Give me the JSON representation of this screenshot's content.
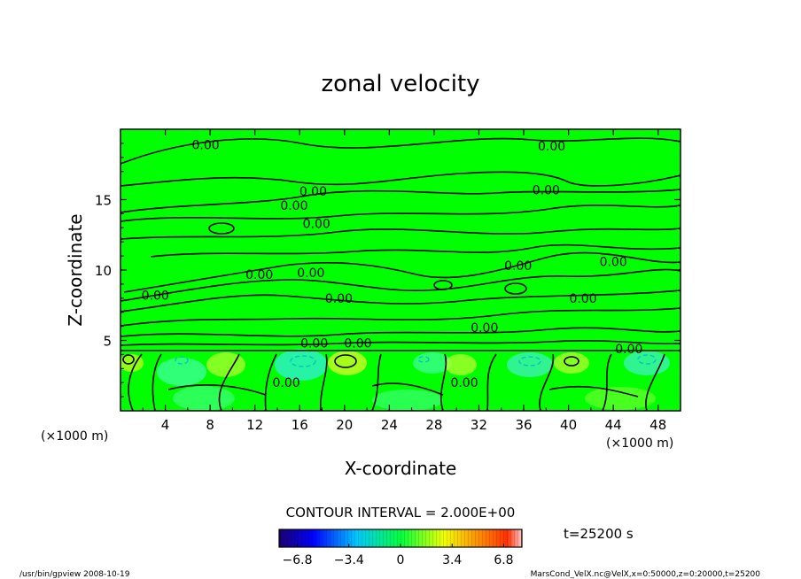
{
  "chart_data": {
    "type": "contour",
    "title": "zonal velocity",
    "xlabel": "X-coordinate",
    "ylabel": "Z-coordinate",
    "x_unit": "(×1000 m)",
    "y_unit": "(×1000 m)",
    "xlim": [
      0,
      50
    ],
    "ylim": [
      0,
      20
    ],
    "x_ticks": [
      4,
      8,
      12,
      16,
      20,
      24,
      28,
      32,
      36,
      40,
      44,
      48
    ],
    "x_tick_labels": [
      "4",
      "8",
      "12",
      "16",
      "20",
      "24",
      "28",
      "32",
      "36",
      "40",
      "44",
      "48"
    ],
    "y_ticks": [
      5,
      10,
      15
    ],
    "y_tick_labels": [
      "5",
      "10",
      "15"
    ],
    "contour_interval_text": "CONTOUR INTERVAL = 2.000E+00",
    "contour_level_label": "0.00",
    "contour_labels": [
      {
        "x": 7.6,
        "y": 18.9,
        "text": "0.00"
      },
      {
        "x": 38.5,
        "y": 18.8,
        "text": "0.00"
      },
      {
        "x": 17.2,
        "y": 15.6,
        "text": "0.00"
      },
      {
        "x": 38.0,
        "y": 15.7,
        "text": "0.00"
      },
      {
        "x": 15.5,
        "y": 14.6,
        "text": "0.00"
      },
      {
        "x": 17.5,
        "y": 13.3,
        "text": "0.00"
      },
      {
        "x": 12.4,
        "y": 9.7,
        "text": "0.00"
      },
      {
        "x": 17.0,
        "y": 9.8,
        "text": "0.00"
      },
      {
        "x": 35.5,
        "y": 10.3,
        "text": "0.00"
      },
      {
        "x": 44.0,
        "y": 10.6,
        "text": "0.00"
      },
      {
        "x": 3.1,
        "y": 8.2,
        "text": "0.00"
      },
      {
        "x": 19.5,
        "y": 8.0,
        "text": "0.00"
      },
      {
        "x": 41.3,
        "y": 8.0,
        "text": "0.00"
      },
      {
        "x": 32.5,
        "y": 5.9,
        "text": "0.00"
      },
      {
        "x": 17.3,
        "y": 4.8,
        "text": "0.00"
      },
      {
        "x": 21.2,
        "y": 4.8,
        "text": "0.00"
      },
      {
        "x": 45.4,
        "y": 4.4,
        "text": "0.00"
      },
      {
        "x": 14.8,
        "y": 2.0,
        "text": "0.00"
      },
      {
        "x": 30.7,
        "y": 2.0,
        "text": "0.00"
      }
    ],
    "colorbar": {
      "ticks": [
        -6.8,
        -3.4,
        0,
        3.4,
        6.8
      ],
      "tick_labels": [
        "−6.8",
        "−3.4",
        "0",
        "3.4",
        "6.8"
      ],
      "colors": [
        "#1a0070",
        "#0000ff",
        "#00c0ff",
        "#00ff40",
        "#f0ff00",
        "#ff8000",
        "#ff3000",
        "#ffc0c0"
      ]
    },
    "time_label": "t=25200 s",
    "background_color": "#00ff00"
  },
  "footer": {
    "left": "/usr/bin/gpview  2008-10-19",
    "right": "MarsCond_VelX.nc@VelX,x=0:50000,z=0:20000,t=25200"
  }
}
